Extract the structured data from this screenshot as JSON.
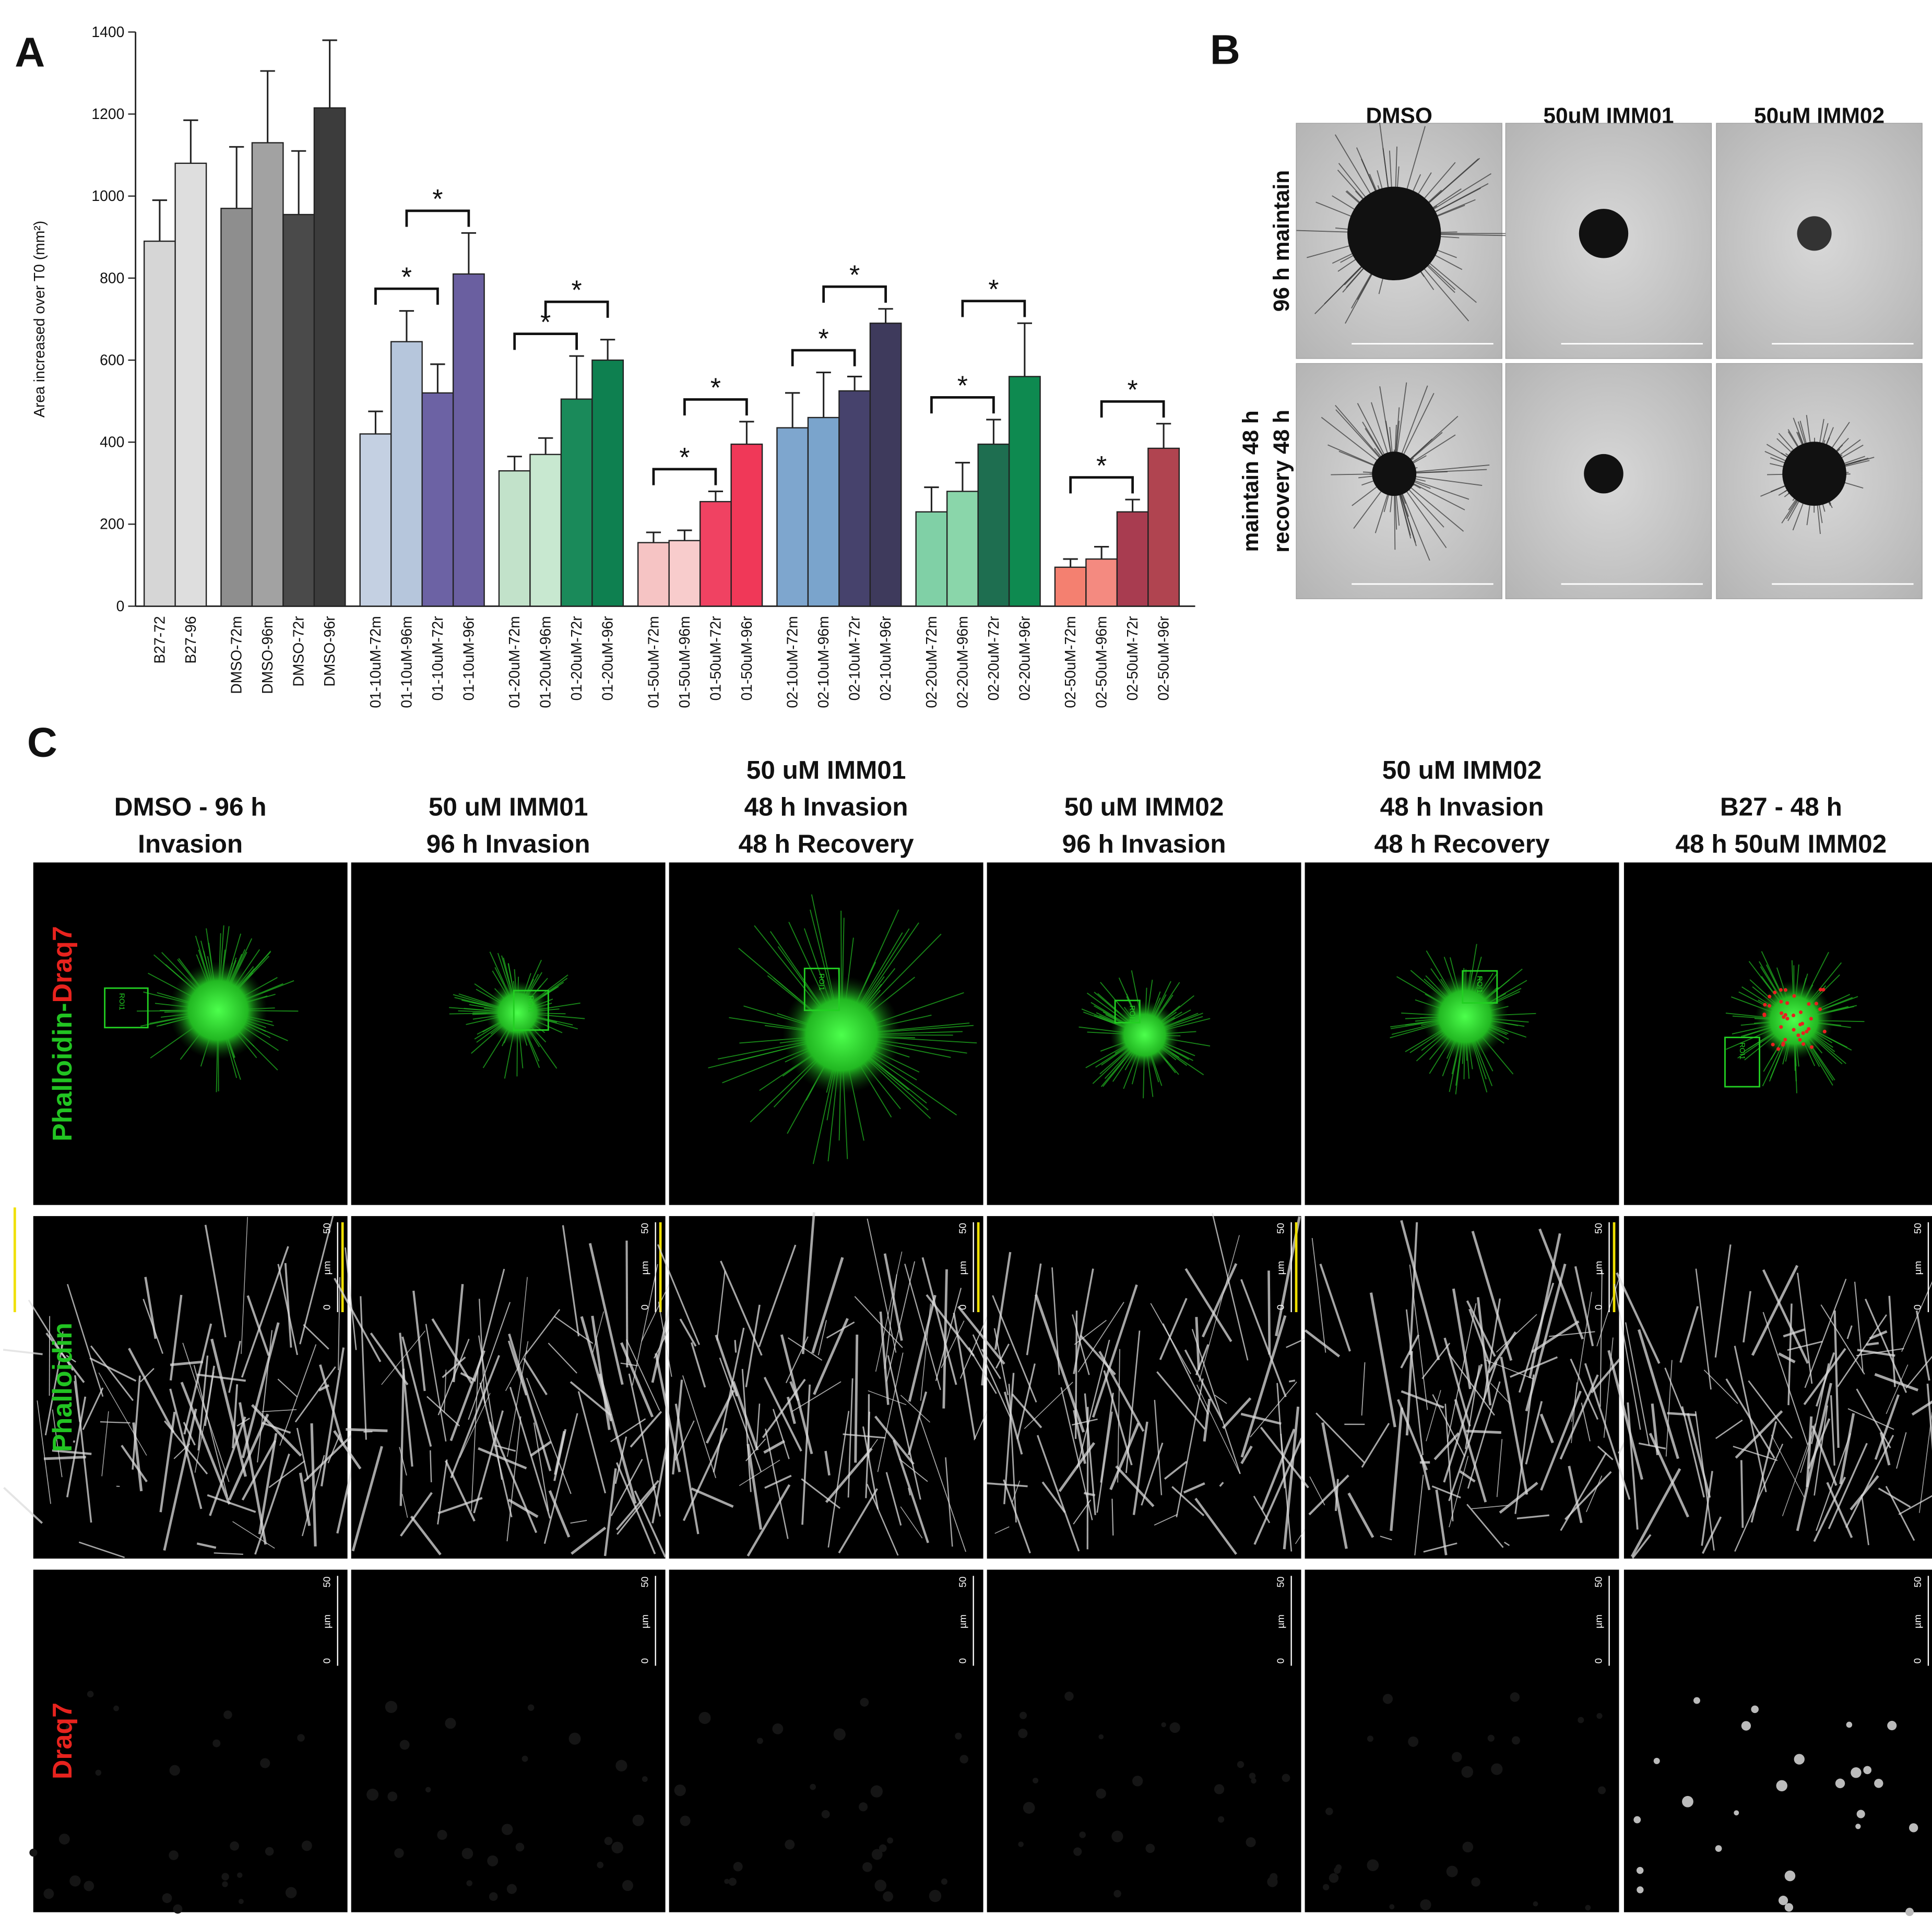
{
  "chart_data": {
    "type": "bar",
    "panel_label": "A",
    "ylabel": "Area increased over T0 (mm²)",
    "categories": [
      "B27-72",
      "B27-96",
      "DMSO-72m",
      "DMSO-96m",
      "DMSO-72r",
      "DMSO-96r",
      "01-10uM-72m",
      "01-10uM-96m",
      "01-10uM-72r",
      "01-10uM-96r",
      "01-20uM-72m",
      "01-20uM-96m",
      "01-20uM-72r",
      "01-20uM-96r",
      "01-50uM-72m",
      "01-50uM-96m",
      "01-50uM-72r",
      "01-50uM-96r",
      "02-10uM-72m",
      "02-10uM-96m",
      "02-10uM-72r",
      "02-10uM-96r",
      "02-20uM-72m",
      "02-20uM-96m",
      "02-20uM-72r",
      "02-20uM-96r",
      "02-50uM-72m",
      "02-50uM-96m",
      "02-50uM-72r",
      "02-50uM-96r"
    ],
    "values": [
      890,
      1080,
      970,
      1130,
      955,
      1215,
      420,
      645,
      520,
      810,
      330,
      370,
      505,
      600,
      155,
      160,
      255,
      395,
      435,
      460,
      525,
      690,
      230,
      280,
      395,
      560,
      95,
      115,
      230,
      385
    ],
    "errors": [
      100,
      105,
      150,
      175,
      155,
      165,
      55,
      75,
      70,
      100,
      35,
      40,
      105,
      50,
      25,
      25,
      25,
      55,
      85,
      110,
      35,
      35,
      60,
      70,
      60,
      130,
      20,
      30,
      30,
      60
    ],
    "colors": [
      "#d6d6d6",
      "#dedede",
      "#8e8e8e",
      "#a2a2a2",
      "#4a4a4a",
      "#3c3c3c",
      "#c4d0e2",
      "#b6c6dc",
      "#6c62a4",
      "#6a5fa0",
      "#c2e2ca",
      "#c8e8d0",
      "#1a8a5a",
      "#0e8050",
      "#f6c4c4",
      "#f8cccc",
      "#f04262",
      "#f03858",
      "#7ea6ce",
      "#7aa4cc",
      "#46426c",
      "#3e3a5c",
      "#80d0a6",
      "#8ad6aa",
      "#1e6e50",
      "#0e8a50",
      "#f48070",
      "#f48a80",
      "#a83c50",
      "#b04450"
    ],
    "ylim": [
      0,
      1400
    ],
    "yticks": [
      0,
      200,
      400,
      600,
      800,
      1000,
      1200,
      1400
    ],
    "significance": [
      {
        "pair": [
          "01-10uM-72m",
          "01-10uM-72r"
        ],
        "label": "*"
      },
      {
        "pair": [
          "01-10uM-96m",
          "01-10uM-96r"
        ],
        "label": "*"
      },
      {
        "pair": [
          "01-20uM-72m",
          "01-20uM-72r"
        ],
        "label": "*"
      },
      {
        "pair": [
          "01-20uM-96m",
          "01-20uM-96r"
        ],
        "label": "*"
      },
      {
        "pair": [
          "01-50uM-72m",
          "01-50uM-72r"
        ],
        "label": "*"
      },
      {
        "pair": [
          "01-50uM-96m",
          "01-50uM-96r"
        ],
        "label": "*"
      },
      {
        "pair": [
          "02-10uM-72m",
          "02-10uM-72r"
        ],
        "label": "*"
      },
      {
        "pair": [
          "02-10uM-96m",
          "02-10uM-96r"
        ],
        "label": "*"
      },
      {
        "pair": [
          "02-20uM-72m",
          "02-20uM-72r"
        ],
        "label": "*"
      },
      {
        "pair": [
          "02-20uM-96m",
          "02-20uM-96r"
        ],
        "label": "*"
      },
      {
        "pair": [
          "02-50uM-72m",
          "02-50uM-72r"
        ],
        "label": "*"
      },
      {
        "pair": [
          "02-50uM-96m",
          "02-50uM-96r"
        ],
        "label": "*"
      }
    ]
  },
  "panel_b": {
    "label": "B",
    "columns": [
      "DMSO",
      "50uM IMM01",
      "50uM IMM02"
    ],
    "rows": [
      [
        "96 h maintain"
      ],
      [
        "maintain 48 h",
        "recovery 48 h"
      ]
    ]
  },
  "panel_c": {
    "label": "C",
    "columns": [
      [
        "DMSO - 96 h",
        "Invasion"
      ],
      [
        "50 uM IMM01",
        "96 h Invasion"
      ],
      [
        "50 uM IMM01",
        "48 h Invasion",
        "48 h Recovery"
      ],
      [
        "50 uM IMM02",
        "96 h Invasion"
      ],
      [
        "50 uM IMM02",
        "48 h Invasion",
        "48 h Recovery"
      ],
      [
        "B27 - 48 h",
        "48 h 50uM IMM02"
      ]
    ],
    "rows": [
      [
        {
          "text": "Phalloidin-",
          "color": "#22c422"
        },
        {
          "text": "Draq7",
          "color": "#e8231e"
        }
      ],
      [
        {
          "text": "Phalloidin",
          "color": "#22c422"
        }
      ],
      [
        {
          "text": "Draq7",
          "color": "#e8231e"
        }
      ]
    ],
    "scale_bar": [
      "0",
      "µm",
      "50"
    ],
    "roi_label": "ROI1"
  }
}
